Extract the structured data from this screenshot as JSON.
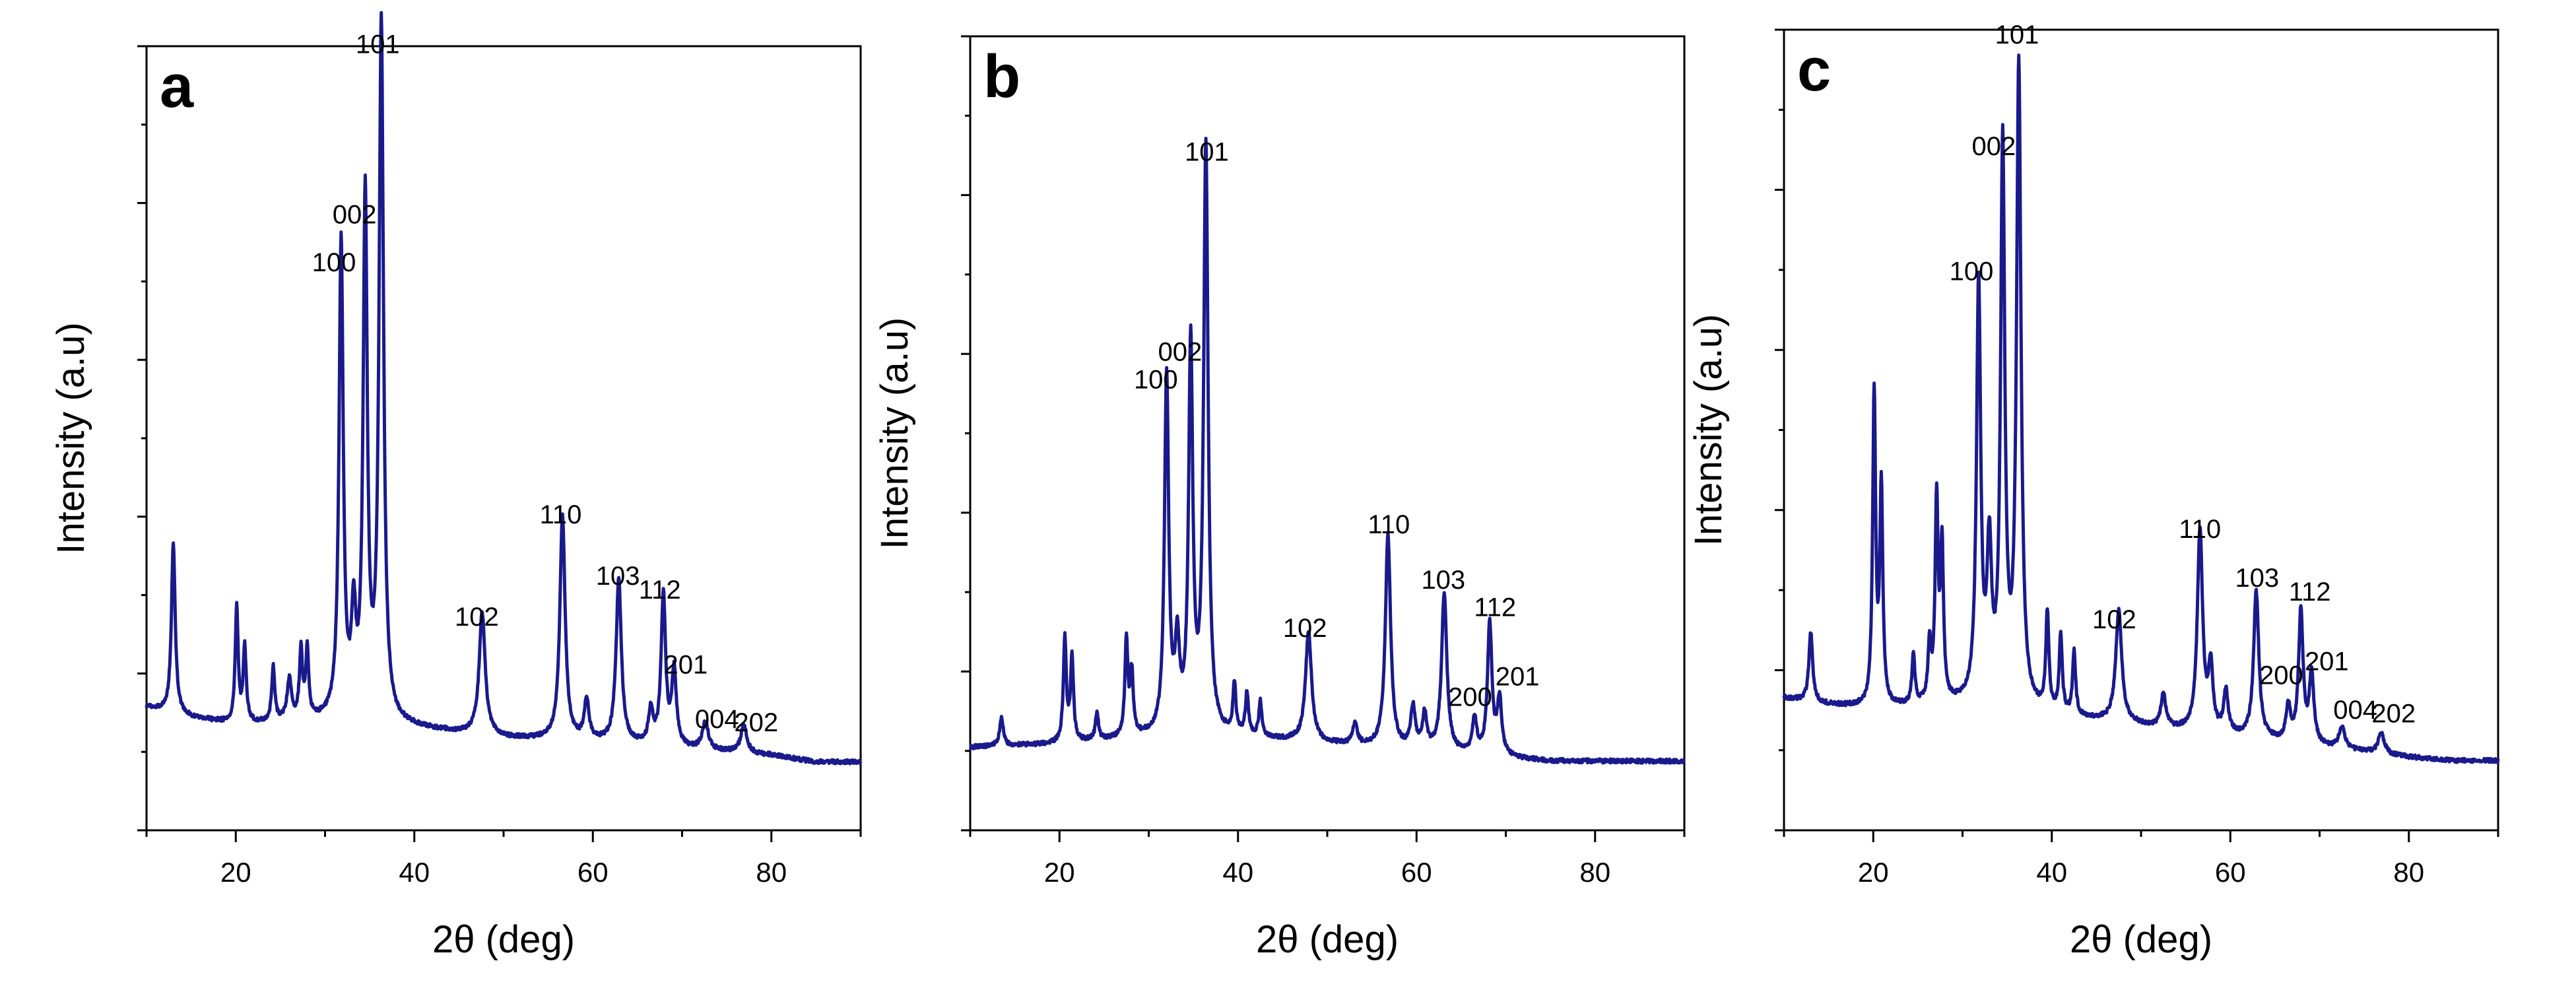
{
  "figure": {
    "color_trace": "#1a1a8c",
    "color_axes": "#000000"
  },
  "chart_data": [
    {
      "type": "line",
      "panel_label": "a",
      "xlabel": "2θ (deg)",
      "ylabel": "Intensity (a.u)",
      "xlim": [
        10,
        90
      ],
      "ylim": [
        -0.1,
        1.05
      ],
      "xticks": [
        20,
        40,
        60,
        80
      ],
      "baseline": [
        [
          10,
          0.08
        ],
        [
          15,
          0.065
        ],
        [
          20,
          0.055
        ],
        [
          30,
          0.06
        ],
        [
          40,
          0.05
        ],
        [
          50,
          0.035
        ],
        [
          60,
          0.03
        ],
        [
          70,
          0.02
        ],
        [
          80,
          0.01
        ],
        [
          85,
          0.0
        ],
        [
          90,
          0.0
        ]
      ],
      "peaks": [
        {
          "x": 13.0,
          "y": 0.25,
          "w": 0.25
        },
        {
          "x": 20.1,
          "y": 0.17,
          "w": 0.2
        },
        {
          "x": 21.0,
          "y": 0.11,
          "w": 0.2
        },
        {
          "x": 24.2,
          "y": 0.08,
          "w": 0.2
        },
        {
          "x": 26.0,
          "y": 0.06,
          "w": 0.3
        },
        {
          "x": 27.3,
          "y": 0.1,
          "w": 0.2
        },
        {
          "x": 28.0,
          "y": 0.1,
          "w": 0.2
        },
        {
          "x": 31.8,
          "y": 0.7,
          "w": 0.28
        },
        {
          "x": 33.2,
          "y": 0.14,
          "w": 0.3
        },
        {
          "x": 34.5,
          "y": 0.76,
          "w": 0.28
        },
        {
          "x": 36.3,
          "y": 1.02,
          "w": 0.3
        },
        {
          "x": 47.6,
          "y": 0.18,
          "w": 0.4
        },
        {
          "x": 56.6,
          "y": 0.33,
          "w": 0.35
        },
        {
          "x": 59.3,
          "y": 0.06,
          "w": 0.3
        },
        {
          "x": 62.9,
          "y": 0.24,
          "w": 0.35
        },
        {
          "x": 66.5,
          "y": 0.05,
          "w": 0.3
        },
        {
          "x": 67.9,
          "y": 0.22,
          "w": 0.3
        },
        {
          "x": 69.1,
          "y": 0.11,
          "w": 0.3
        },
        {
          "x": 72.6,
          "y": 0.04,
          "w": 0.4
        },
        {
          "x": 76.9,
          "y": 0.04,
          "w": 0.4
        }
      ],
      "annotations": [
        {
          "text": "100",
          "x": 31.0,
          "y": 0.72
        },
        {
          "text": "002",
          "x": 33.3,
          "y": 0.79
        },
        {
          "text": "101",
          "x": 35.9,
          "y": 1.04
        },
        {
          "text": "102",
          "x": 47.0,
          "y": 0.2
        },
        {
          "text": "110",
          "x": 56.4,
          "y": 0.35
        },
        {
          "text": "103",
          "x": 62.8,
          "y": 0.26
        },
        {
          "text": "112",
          "x": 67.5,
          "y": 0.24
        },
        {
          "text": "201",
          "x": 70.4,
          "y": 0.13
        },
        {
          "text": "004",
          "x": 73.9,
          "y": 0.05
        },
        {
          "text": "202",
          "x": 78.3,
          "y": 0.045
        }
      ]
    },
    {
      "type": "line",
      "panel_label": "b",
      "xlabel": "2θ (deg)",
      "ylabel": "Intensity (a.u)",
      "xlim": [
        10,
        90
      ],
      "ylim": [
        -0.1,
        1.05
      ],
      "xticks": [
        20,
        40,
        60,
        80
      ],
      "baseline": [
        [
          10,
          0.02
        ],
        [
          20,
          0.025
        ],
        [
          30,
          0.035
        ],
        [
          40,
          0.035
        ],
        [
          50,
          0.025
        ],
        [
          60,
          0.015
        ],
        [
          70,
          0.005
        ],
        [
          75,
          0.0
        ],
        [
          90,
          0.0
        ]
      ],
      "peaks": [
        {
          "x": 13.5,
          "y": 0.04,
          "w": 0.25
        },
        {
          "x": 20.6,
          "y": 0.15,
          "w": 0.2
        },
        {
          "x": 21.4,
          "y": 0.12,
          "w": 0.2
        },
        {
          "x": 24.2,
          "y": 0.04,
          "w": 0.2
        },
        {
          "x": 27.5,
          "y": 0.14,
          "w": 0.2
        },
        {
          "x": 28.1,
          "y": 0.09,
          "w": 0.2
        },
        {
          "x": 32.0,
          "y": 0.52,
          "w": 0.28
        },
        {
          "x": 33.2,
          "y": 0.12,
          "w": 0.3
        },
        {
          "x": 34.7,
          "y": 0.56,
          "w": 0.28
        },
        {
          "x": 36.4,
          "y": 0.85,
          "w": 0.3
        },
        {
          "x": 39.6,
          "y": 0.07,
          "w": 0.2
        },
        {
          "x": 41.0,
          "y": 0.06,
          "w": 0.2
        },
        {
          "x": 42.5,
          "y": 0.05,
          "w": 0.2
        },
        {
          "x": 47.9,
          "y": 0.16,
          "w": 0.4
        },
        {
          "x": 53.1,
          "y": 0.03,
          "w": 0.3
        },
        {
          "x": 56.8,
          "y": 0.31,
          "w": 0.35
        },
        {
          "x": 59.6,
          "y": 0.06,
          "w": 0.3
        },
        {
          "x": 60.9,
          "y": 0.05,
          "w": 0.3
        },
        {
          "x": 63.1,
          "y": 0.23,
          "w": 0.35
        },
        {
          "x": 66.5,
          "y": 0.05,
          "w": 0.3
        },
        {
          "x": 68.2,
          "y": 0.19,
          "w": 0.3
        },
        {
          "x": 69.3,
          "y": 0.08,
          "w": 0.3
        }
      ],
      "annotations": [
        {
          "text": "100",
          "x": 30.8,
          "y": 0.54
        },
        {
          "text": "002",
          "x": 33.5,
          "y": 0.58
        },
        {
          "text": "101",
          "x": 36.5,
          "y": 0.87
        },
        {
          "text": "102",
          "x": 47.5,
          "y": 0.18
        },
        {
          "text": "110",
          "x": 56.9,
          "y": 0.33
        },
        {
          "text": "103",
          "x": 63.0,
          "y": 0.25
        },
        {
          "text": "200",
          "x": 66.0,
          "y": 0.08
        },
        {
          "text": "112",
          "x": 68.8,
          "y": 0.21
        },
        {
          "text": "201",
          "x": 71.3,
          "y": 0.11
        }
      ]
    },
    {
      "type": "line",
      "panel_label": "c",
      "xlabel": "2θ (deg)",
      "ylabel": "Intensity (a.u)",
      "xlim": [
        10,
        90
      ],
      "ylim": [
        -0.1,
        1.05
      ],
      "xticks": [
        20,
        40,
        60,
        80
      ],
      "baseline": [
        [
          10,
          0.09
        ],
        [
          15,
          0.08
        ],
        [
          20,
          0.075
        ],
        [
          30,
          0.08
        ],
        [
          40,
          0.065
        ],
        [
          50,
          0.05
        ],
        [
          60,
          0.035
        ],
        [
          70,
          0.02
        ],
        [
          80,
          0.005
        ],
        [
          85,
          0.0
        ],
        [
          90,
          0.0
        ]
      ],
      "peaks": [
        {
          "x": 13.0,
          "y": 0.1,
          "w": 0.25
        },
        {
          "x": 20.1,
          "y": 0.45,
          "w": 0.2
        },
        {
          "x": 20.9,
          "y": 0.31,
          "w": 0.2
        },
        {
          "x": 24.5,
          "y": 0.07,
          "w": 0.2
        },
        {
          "x": 26.3,
          "y": 0.08,
          "w": 0.2
        },
        {
          "x": 27.1,
          "y": 0.29,
          "w": 0.2
        },
        {
          "x": 27.7,
          "y": 0.22,
          "w": 0.2
        },
        {
          "x": 31.8,
          "y": 0.6,
          "w": 0.28
        },
        {
          "x": 33.0,
          "y": 0.21,
          "w": 0.3
        },
        {
          "x": 34.5,
          "y": 0.8,
          "w": 0.28
        },
        {
          "x": 36.3,
          "y": 0.92,
          "w": 0.3
        },
        {
          "x": 39.5,
          "y": 0.14,
          "w": 0.2
        },
        {
          "x": 41.0,
          "y": 0.11,
          "w": 0.2
        },
        {
          "x": 42.5,
          "y": 0.09,
          "w": 0.2
        },
        {
          "x": 47.5,
          "y": 0.16,
          "w": 0.4
        },
        {
          "x": 52.5,
          "y": 0.05,
          "w": 0.3
        },
        {
          "x": 56.6,
          "y": 0.29,
          "w": 0.35
        },
        {
          "x": 57.8,
          "y": 0.09,
          "w": 0.3
        },
        {
          "x": 59.5,
          "y": 0.06,
          "w": 0.3
        },
        {
          "x": 62.9,
          "y": 0.21,
          "w": 0.35
        },
        {
          "x": 66.5,
          "y": 0.05,
          "w": 0.3
        },
        {
          "x": 67.9,
          "y": 0.19,
          "w": 0.3
        },
        {
          "x": 69.1,
          "y": 0.1,
          "w": 0.3
        },
        {
          "x": 72.5,
          "y": 0.03,
          "w": 0.4
        },
        {
          "x": 76.9,
          "y": 0.03,
          "w": 0.4
        }
      ],
      "annotations": [
        {
          "text": "100",
          "x": 31.0,
          "y": 0.69
        },
        {
          "text": "002",
          "x": 33.5,
          "y": 0.87
        },
        {
          "text": "101",
          "x": 36.1,
          "y": 1.03
        },
        {
          "text": "102",
          "x": 47.0,
          "y": 0.19
        },
        {
          "text": "110",
          "x": 56.6,
          "y": 0.32
        },
        {
          "text": "103",
          "x": 63.0,
          "y": 0.25
        },
        {
          "text": "200",
          "x": 65.7,
          "y": 0.11
        },
        {
          "text": "112",
          "x": 68.9,
          "y": 0.23
        },
        {
          "text": "201",
          "x": 70.8,
          "y": 0.13
        },
        {
          "text": "004",
          "x": 74.0,
          "y": 0.06
        },
        {
          "text": "202",
          "x": 78.3,
          "y": 0.055
        }
      ]
    }
  ]
}
